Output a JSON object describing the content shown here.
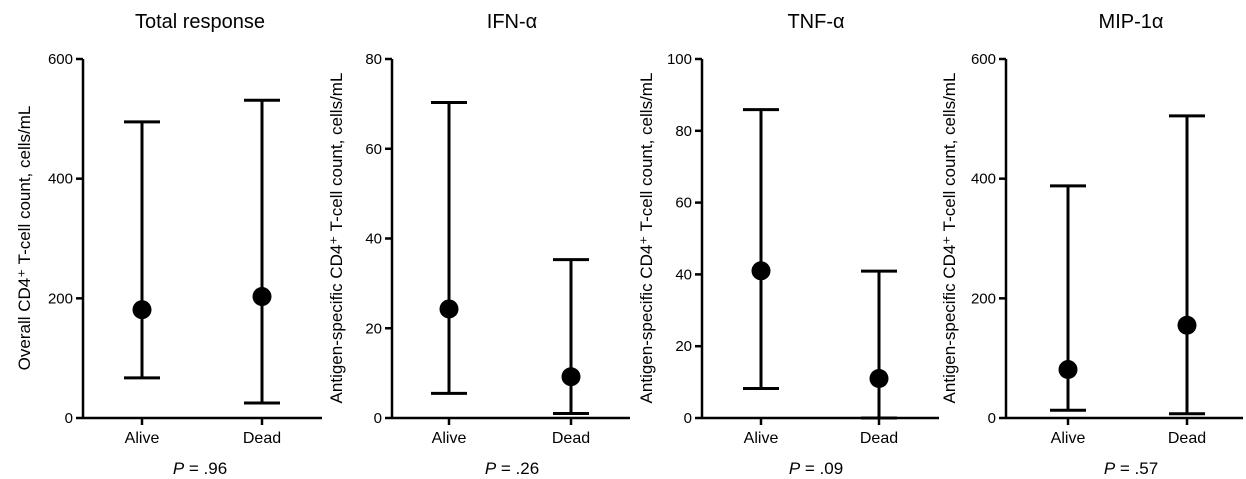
{
  "chart_data": [
    {
      "type": "scatter",
      "title": "Total response",
      "ylabel": "Overall CD4⁺ T-cell count, cells/mL",
      "categories": [
        "Alive",
        "Dead"
      ],
      "values": [
        181,
        203
      ],
      "lower": [
        67,
        25
      ],
      "upper": [
        495,
        531
      ],
      "ylim": [
        0,
        600
      ],
      "yticks": [
        0,
        200,
        400,
        600
      ],
      "p_prefix": "P",
      "p_value": "= .96"
    },
    {
      "type": "scatter",
      "title": "IFN-α",
      "ylabel": "Antigen-specific CD4⁺ T-cell count, cells/mL",
      "categories": [
        "Alive",
        "Dead"
      ],
      "values": [
        24.3,
        9.2
      ],
      "lower": [
        5.5,
        1.0
      ],
      "upper": [
        70.3,
        35.3
      ],
      "ylim": [
        0,
        80
      ],
      "yticks": [
        0,
        20,
        40,
        60,
        80
      ],
      "p_prefix": "P",
      "p_value": "= .26"
    },
    {
      "type": "scatter",
      "title": "TNF-α",
      "ylabel": "Antigen-specific CD4⁺ T-cell count, cells/mL",
      "categories": [
        "Alive",
        "Dead"
      ],
      "values": [
        41,
        11
      ],
      "lower": [
        8.2,
        0
      ],
      "upper": [
        85.9,
        40.9
      ],
      "ylim": [
        0,
        100
      ],
      "yticks": [
        0,
        20,
        40,
        60,
        80,
        100
      ],
      "p_prefix": "P",
      "p_value": "= .09"
    },
    {
      "type": "scatter",
      "title": "MIP-1α",
      "ylabel": "Antigen-specific CD4⁺ T-cell count, cells/mL",
      "categories": [
        "Alive",
        "Dead"
      ],
      "values": [
        81,
        155
      ],
      "lower": [
        13,
        7
      ],
      "upper": [
        388,
        505
      ],
      "ylim": [
        0,
        600
      ],
      "yticks": [
        0,
        200,
        400,
        600
      ],
      "p_prefix": "P",
      "p_value": "= .57"
    }
  ]
}
